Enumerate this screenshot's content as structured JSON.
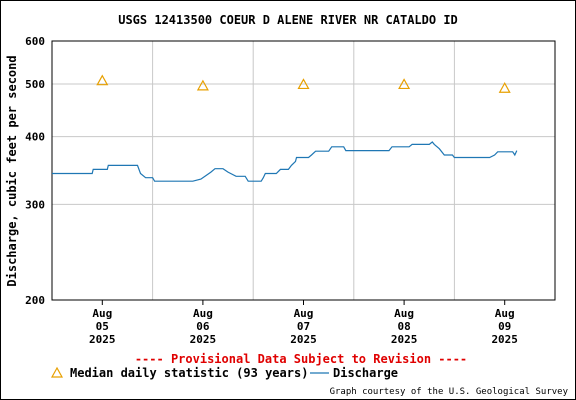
{
  "chart_data": {
    "type": "line",
    "title": "USGS 12413500 COEUR D ALENE RIVER NR CATALDO ID",
    "ylabel": "Discharge, cubic feet per second",
    "xlabel": "",
    "y_scale": "log",
    "ylim": [
      200,
      600
    ],
    "y_ticks": [
      "600",
      "500",
      "400",
      "300",
      "200"
    ],
    "x_ticks": [
      {
        "month": "Aug",
        "day": "05",
        "year": "2025"
      },
      {
        "month": "Aug",
        "day": "06",
        "year": "2025"
      },
      {
        "month": "Aug",
        "day": "07",
        "year": "2025"
      },
      {
        "month": "Aug",
        "day": "08",
        "year": "2025"
      },
      {
        "month": "Aug",
        "day": "09",
        "year": "2025"
      }
    ],
    "x_range_days": [
      -0.5,
      4.5
    ],
    "grid": true,
    "series": [
      {
        "name": "Discharge",
        "color": "#1f77b4",
        "points": [
          [
            -0.5,
            342
          ],
          [
            -0.1,
            342
          ],
          [
            -0.09,
            348
          ],
          [
            0.05,
            348
          ],
          [
            0.06,
            354
          ],
          [
            0.35,
            354
          ],
          [
            0.38,
            342
          ],
          [
            0.43,
            336
          ],
          [
            0.5,
            336
          ],
          [
            0.52,
            331
          ],
          [
            0.9,
            331
          ],
          [
            0.98,
            334
          ],
          [
            1.03,
            339
          ],
          [
            1.08,
            344
          ],
          [
            1.12,
            349
          ],
          [
            1.2,
            349
          ],
          [
            1.25,
            344
          ],
          [
            1.33,
            338
          ],
          [
            1.42,
            338
          ],
          [
            1.45,
            331
          ],
          [
            1.58,
            331
          ],
          [
            1.6,
            336
          ],
          [
            1.62,
            342
          ],
          [
            1.73,
            342
          ],
          [
            1.77,
            348
          ],
          [
            1.85,
            348
          ],
          [
            1.88,
            354
          ],
          [
            1.92,
            360
          ],
          [
            1.93,
            366
          ],
          [
            2.05,
            366
          ],
          [
            2.08,
            370
          ],
          [
            2.12,
            376
          ],
          [
            2.25,
            376
          ],
          [
            2.28,
            383
          ],
          [
            2.4,
            383
          ],
          [
            2.42,
            377
          ],
          [
            2.85,
            377
          ],
          [
            2.88,
            383
          ],
          [
            3.05,
            383
          ],
          [
            3.08,
            387
          ],
          [
            3.25,
            387
          ],
          [
            3.28,
            391
          ],
          [
            3.3,
            387
          ],
          [
            3.35,
            380
          ],
          [
            3.4,
            370
          ],
          [
            3.48,
            370
          ],
          [
            3.5,
            366
          ],
          [
            3.85,
            366
          ],
          [
            3.9,
            370
          ],
          [
            3.93,
            375
          ],
          [
            4.05,
            375
          ],
          [
            4.08,
            375
          ],
          [
            4.1,
            370
          ],
          [
            4.12,
            377
          ]
        ]
      },
      {
        "name": "Median daily statistic (93 years)",
        "color": "#e8a000",
        "marker": "triangle",
        "points": [
          [
            0,
            507
          ],
          [
            1,
            496
          ],
          [
            2,
            499
          ],
          [
            3,
            499
          ],
          [
            4,
            491
          ]
        ]
      }
    ],
    "provisional_note": "---- Provisional Data Subject to Revision ----",
    "legend": {
      "placement": "bottom",
      "median_label": "Median daily statistic (93 years)",
      "discharge_label": "Discharge"
    },
    "credit": "Graph courtesy of the U.S. Geological Survey"
  }
}
